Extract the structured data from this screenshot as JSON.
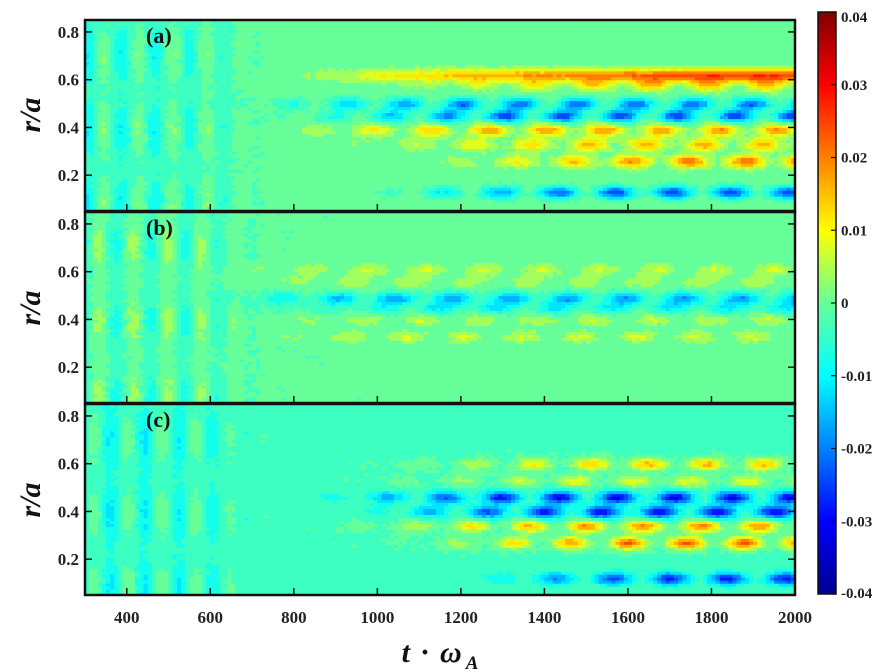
{
  "chart_data": {
    "type": "heatmap",
    "x_axis": {
      "label_main": "t",
      "label_dot": "·",
      "label_sym": "ω",
      "label_sub": "A",
      "range": [
        300,
        2000
      ],
      "ticks": [
        400,
        600,
        800,
        1000,
        1200,
        1400,
        1600,
        1800,
        2000
      ],
      "tick_labels": [
        "400",
        "600",
        "800",
        "1000",
        "1200",
        "1400",
        "1600",
        "1800",
        "2000"
      ]
    },
    "y_axis": {
      "label": "r/a",
      "range": [
        0.05,
        0.85
      ],
      "ticks": [
        0.2,
        0.4,
        0.6,
        0.8
      ],
      "tick_labels": [
        "0.2",
        "0.4",
        "0.6",
        "0.8"
      ]
    },
    "colorbar": {
      "range": [
        -0.04,
        0.04
      ],
      "ticks": [
        0.04,
        0.03,
        0.02,
        0.01,
        0,
        -0.01,
        -0.02,
        -0.03,
        -0.04
      ],
      "tick_labels": [
        "0.04",
        "0.03",
        "0.02",
        "0.01",
        "0",
        "-0.01",
        "-0.02",
        "-0.03",
        "-0.04"
      ],
      "colormap": "jet"
    },
    "panels": [
      {
        "label": "(a)",
        "base_early": -0.004,
        "base_late": 0.0,
        "bands": [
          {
            "r": 0.62,
            "amp": 0.025,
            "onset": 900,
            "grow": 1400,
            "alt": false
          },
          {
            "r": 0.58,
            "amp": 0.015,
            "onset": 1100,
            "grow": 900,
            "alt": true
          },
          {
            "r": 0.5,
            "amp": -0.022,
            "onset": 750,
            "grow": 700,
            "alt": true
          },
          {
            "r": 0.45,
            "amp": -0.025,
            "onset": 850,
            "grow": 700,
            "alt": true
          },
          {
            "r": 0.39,
            "amp": 0.018,
            "onset": 800,
            "grow": 800,
            "alt": true
          },
          {
            "r": 0.33,
            "amp": 0.016,
            "onset": 1000,
            "grow": 800,
            "alt": true
          },
          {
            "r": 0.26,
            "amp": 0.022,
            "onset": 1200,
            "grow": 800,
            "alt": true
          },
          {
            "r": 0.13,
            "amp": -0.025,
            "onset": 1050,
            "grow": 700,
            "alt": true
          }
        ]
      },
      {
        "label": "(b)",
        "base_early": -0.002,
        "base_late": -0.001,
        "bands": [
          {
            "r": 0.61,
            "amp": 0.008,
            "onset": 600,
            "grow": 500,
            "alt": true
          },
          {
            "r": 0.56,
            "amp": 0.006,
            "onset": 600,
            "grow": 500,
            "alt": true
          },
          {
            "r": 0.49,
            "amp": -0.017,
            "onset": 650,
            "grow": 500,
            "alt": true
          },
          {
            "r": 0.45,
            "amp": -0.01,
            "onset": 800,
            "grow": 500,
            "alt": true
          },
          {
            "r": 0.4,
            "amp": 0.007,
            "onset": 700,
            "grow": 500,
            "alt": true
          },
          {
            "r": 0.33,
            "amp": 0.008,
            "onset": 700,
            "grow": 500,
            "alt": true
          }
        ]
      },
      {
        "label": "(c)",
        "base_early": -0.005,
        "base_late": -0.003,
        "bands": [
          {
            "r": 0.6,
            "amp": 0.018,
            "onset": 1100,
            "grow": 700,
            "alt": true
          },
          {
            "r": 0.53,
            "amp": 0.012,
            "onset": 1050,
            "grow": 700,
            "alt": true
          },
          {
            "r": 0.46,
            "amp": -0.028,
            "onset": 900,
            "grow": 700,
            "alt": true
          },
          {
            "r": 0.4,
            "amp": -0.028,
            "onset": 1000,
            "grow": 700,
            "alt": true
          },
          {
            "r": 0.34,
            "amp": 0.022,
            "onset": 1000,
            "grow": 700,
            "alt": true
          },
          {
            "r": 0.27,
            "amp": 0.026,
            "onset": 1150,
            "grow": 700,
            "alt": true
          },
          {
            "r": 0.12,
            "amp": -0.025,
            "onset": 1250,
            "grow": 600,
            "alt": true
          }
        ]
      }
    ]
  }
}
